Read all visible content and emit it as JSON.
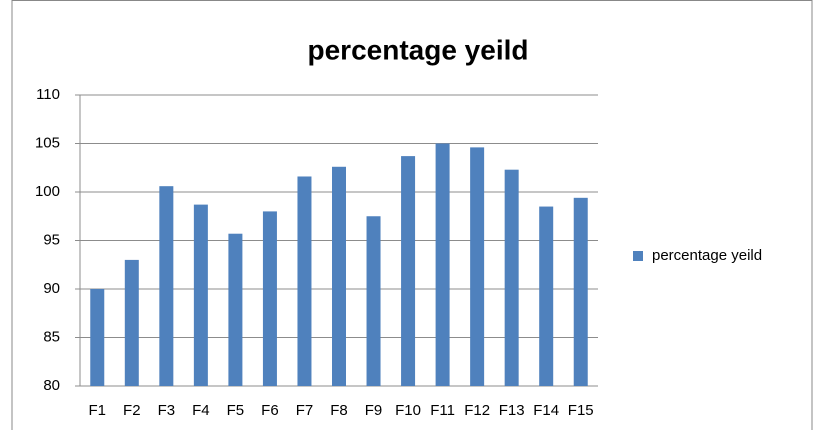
{
  "chart_data": {
    "type": "bar",
    "title": "percentage yeild",
    "categories": [
      "F1",
      "F2",
      "F3",
      "F4",
      "F5",
      "F6",
      "F7",
      "F8",
      "F9",
      "F10",
      "F11",
      "F12",
      "F13",
      "F14",
      "F15"
    ],
    "series": [
      {
        "name": "percentage yeild",
        "color": "#4f81bd",
        "values": [
          90,
          93,
          100.6,
          98.7,
          95.7,
          98,
          101.6,
          102.6,
          97.5,
          103.7,
          105,
          104.6,
          102.3,
          98.5,
          99.4
        ]
      }
    ],
    "ylim": [
      80,
      110
    ],
    "yticks": [
      80,
      85,
      90,
      95,
      100,
      105,
      110
    ],
    "grid": true,
    "legend": "right"
  }
}
